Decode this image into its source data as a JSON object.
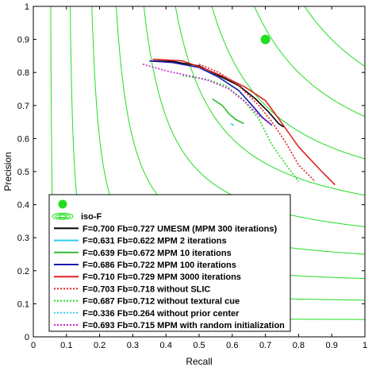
{
  "chart_data": {
    "type": "line",
    "xlabel": "Recall",
    "ylabel": "Precision",
    "xlim": [
      0,
      1
    ],
    "ylim": [
      0,
      1
    ],
    "xticks": [
      "0",
      "0.1",
      "0.2",
      "0.3",
      "0.4",
      "0.5",
      "0.6",
      "0.7",
      "0.8",
      "0.9",
      "1"
    ],
    "yticks": [
      "0",
      "0.1",
      "0.2",
      "0.3",
      "0.4",
      "0.5",
      "0.6",
      "0.7",
      "0.8",
      "0.9",
      "1"
    ],
    "grid": false,
    "legend_position": "bottom-left",
    "iso_f": {
      "label": "iso-F",
      "color": "#22dd22",
      "levels": [
        0.1,
        0.2,
        0.3,
        0.4,
        0.5,
        0.6,
        0.7,
        0.8,
        0.9
      ]
    },
    "marker": {
      "x": 0.7,
      "y": 0.9,
      "color": "#22dd22"
    },
    "series": [
      {
        "name": "F=0.700 Fb=0.727  UMESM (MPM 300 iterations)",
        "color": "#000000",
        "dash": "solid",
        "points": [
          [
            0.36,
            0.835
          ],
          [
            0.42,
            0.833
          ],
          [
            0.5,
            0.82
          ],
          [
            0.56,
            0.79
          ],
          [
            0.62,
            0.76
          ],
          [
            0.67,
            0.72
          ],
          [
            0.71,
            0.68
          ],
          [
            0.74,
            0.645
          ],
          [
            0.755,
            0.635
          ]
        ]
      },
      {
        "name": "F=0.631 Fb=0.622  MPM 2 iterations",
        "color": "#33ccee",
        "dash": "solid",
        "points": [
          [
            0.595,
            0.645
          ],
          [
            0.605,
            0.64
          ]
        ]
      },
      {
        "name": "F=0.639 Fb=0.672  MPM 10 iterations",
        "color": "#33bb33",
        "dash": "solid",
        "points": [
          [
            0.54,
            0.72
          ],
          [
            0.57,
            0.7
          ],
          [
            0.59,
            0.675
          ],
          [
            0.61,
            0.658
          ],
          [
            0.635,
            0.645
          ]
        ]
      },
      {
        "name": "F=0.686 Fb=0.722  MPM 100 iterations",
        "color": "#1a1aaa",
        "dash": "solid",
        "points": [
          [
            0.35,
            0.835
          ],
          [
            0.42,
            0.83
          ],
          [
            0.5,
            0.815
          ],
          [
            0.56,
            0.785
          ],
          [
            0.62,
            0.745
          ],
          [
            0.66,
            0.7
          ],
          [
            0.69,
            0.665
          ],
          [
            0.72,
            0.64
          ]
        ]
      },
      {
        "name": "F=0.710 Fb=0.729  MPM 3000 iterations",
        "color": "#dd2222",
        "dash": "solid",
        "points": [
          [
            0.36,
            0.84
          ],
          [
            0.45,
            0.835
          ],
          [
            0.52,
            0.81
          ],
          [
            0.58,
            0.785
          ],
          [
            0.64,
            0.755
          ],
          [
            0.7,
            0.715
          ],
          [
            0.74,
            0.66
          ],
          [
            0.8,
            0.575
          ],
          [
            0.87,
            0.5
          ],
          [
            0.91,
            0.46
          ]
        ]
      },
      {
        "name": "F=0.703 Fb=0.718  without SLIC",
        "color": "#dd2222",
        "dash": "dotted",
        "points": [
          [
            0.5,
            0.825
          ],
          [
            0.56,
            0.8
          ],
          [
            0.62,
            0.76
          ],
          [
            0.68,
            0.7
          ],
          [
            0.72,
            0.65
          ],
          [
            0.76,
            0.59
          ],
          [
            0.8,
            0.52
          ],
          [
            0.85,
            0.47
          ]
        ]
      },
      {
        "name": "F=0.687 Fb=0.712  without textural cue",
        "color": "#22dd22",
        "dash": "dotted",
        "points": [
          [
            0.45,
            0.79
          ],
          [
            0.52,
            0.78
          ],
          [
            0.58,
            0.76
          ],
          [
            0.63,
            0.72
          ],
          [
            0.68,
            0.66
          ],
          [
            0.72,
            0.58
          ],
          [
            0.77,
            0.51
          ],
          [
            0.8,
            0.47
          ]
        ]
      },
      {
        "name": "F=0.336 Fb=0.264  without prior center",
        "color": "#33ccee",
        "dash": "dotted",
        "points": []
      },
      {
        "name": "F=0.693 Fb=0.715  MPM with random initialization",
        "color": "#cc22cc",
        "dash": "dotted",
        "points": [
          [
            0.33,
            0.825
          ],
          [
            0.4,
            0.805
          ],
          [
            0.47,
            0.79
          ],
          [
            0.53,
            0.775
          ],
          [
            0.59,
            0.75
          ],
          [
            0.64,
            0.71
          ],
          [
            0.68,
            0.67
          ],
          [
            0.72,
            0.64
          ]
        ]
      }
    ]
  }
}
